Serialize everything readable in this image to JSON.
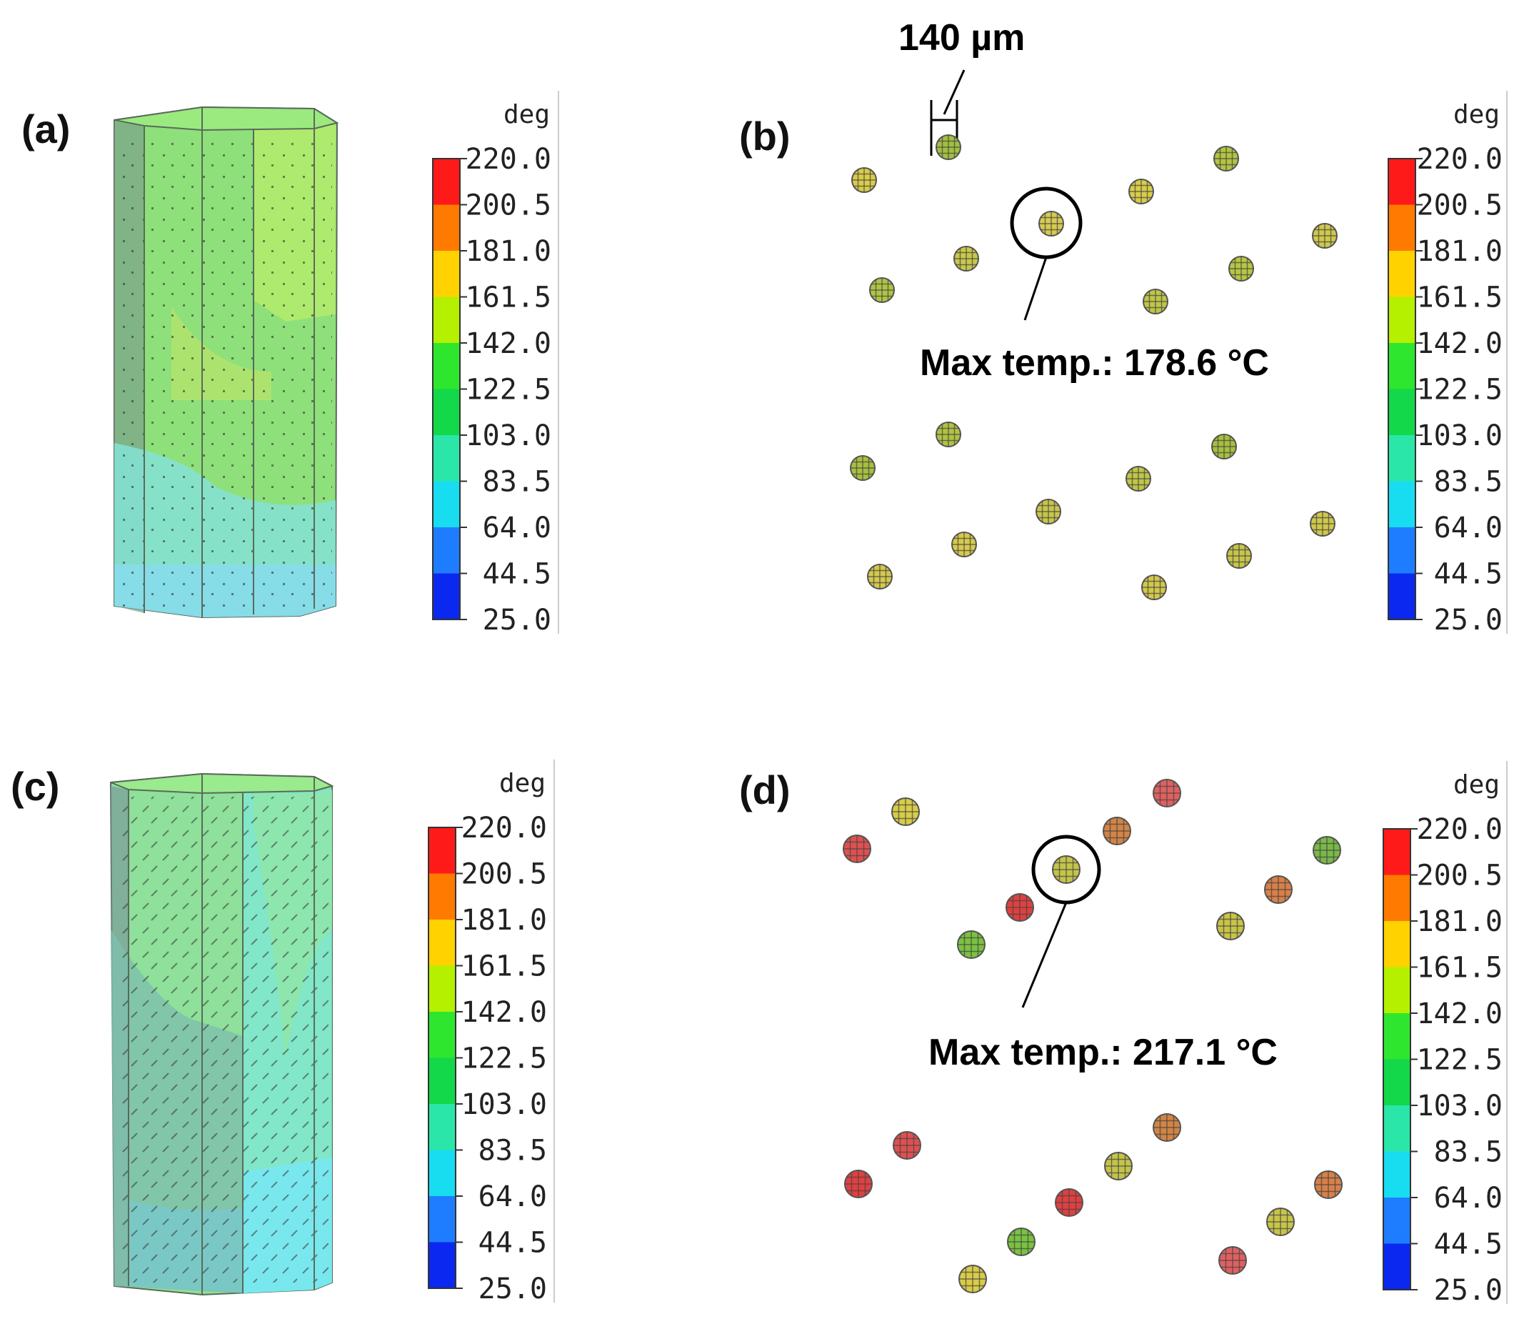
{
  "panels": [
    {
      "label": "(a)",
      "type": "column",
      "variant": "a"
    },
    {
      "label": "(b)",
      "type": "particles",
      "annotation": "Max temp.: 178.6 °C",
      "scale_label": "140 µm"
    },
    {
      "label": "(c)",
      "type": "column",
      "variant": "c"
    },
    {
      "label": "(d)",
      "type": "particles",
      "annotation": "Max temp.: 217.1 °C"
    }
  ],
  "colorbar": {
    "unit": "deg",
    "ticks": [
      "220.0",
      "200.5",
      "181.0",
      "161.5",
      "142.0",
      "122.5",
      "103.0",
      "83.5",
      "64.0",
      "44.5",
      "25.0"
    ],
    "colors": [
      "#ff1a1a",
      "#ff7a00",
      "#ffd200",
      "#b4f000",
      "#2fe62f",
      "#12d84a",
      "#2ae6a8",
      "#18dcf0",
      "#1e7dff",
      "#0a28f0"
    ]
  },
  "particle_colors": {
    "b": [
      "#d8cc48",
      "#a2c040",
      "#c8c84a",
      "#b0c443",
      "#d6ca50",
      "#d8cc48",
      "#b4c442",
      "#d0c84c",
      "#b8c642",
      "#c0c646",
      "#a6c03e",
      "#b2c242",
      "#d6ca4c",
      "#d4c84c",
      "#c8c64a",
      "#c0c646",
      "#a6c03e",
      "#d0c84a",
      "#c8c64a",
      "#d2c84c",
      "#aec244",
      "#c0c646"
    ],
    "d": [
      "#e05050",
      "#d8cc48",
      "#7ac240",
      "#e04040",
      "#c4c44a",
      "#d28444",
      "#e06060",
      "#c8c448",
      "#d88048",
      "#7ab848",
      "#e04040",
      "#e05050",
      "#d8cc48",
      "#7ac240",
      "#e04040",
      "#c4c44a",
      "#d28444",
      "#e06060",
      "#c8c448",
      "#d88048",
      "#7ab848",
      "#e04040"
    ]
  }
}
